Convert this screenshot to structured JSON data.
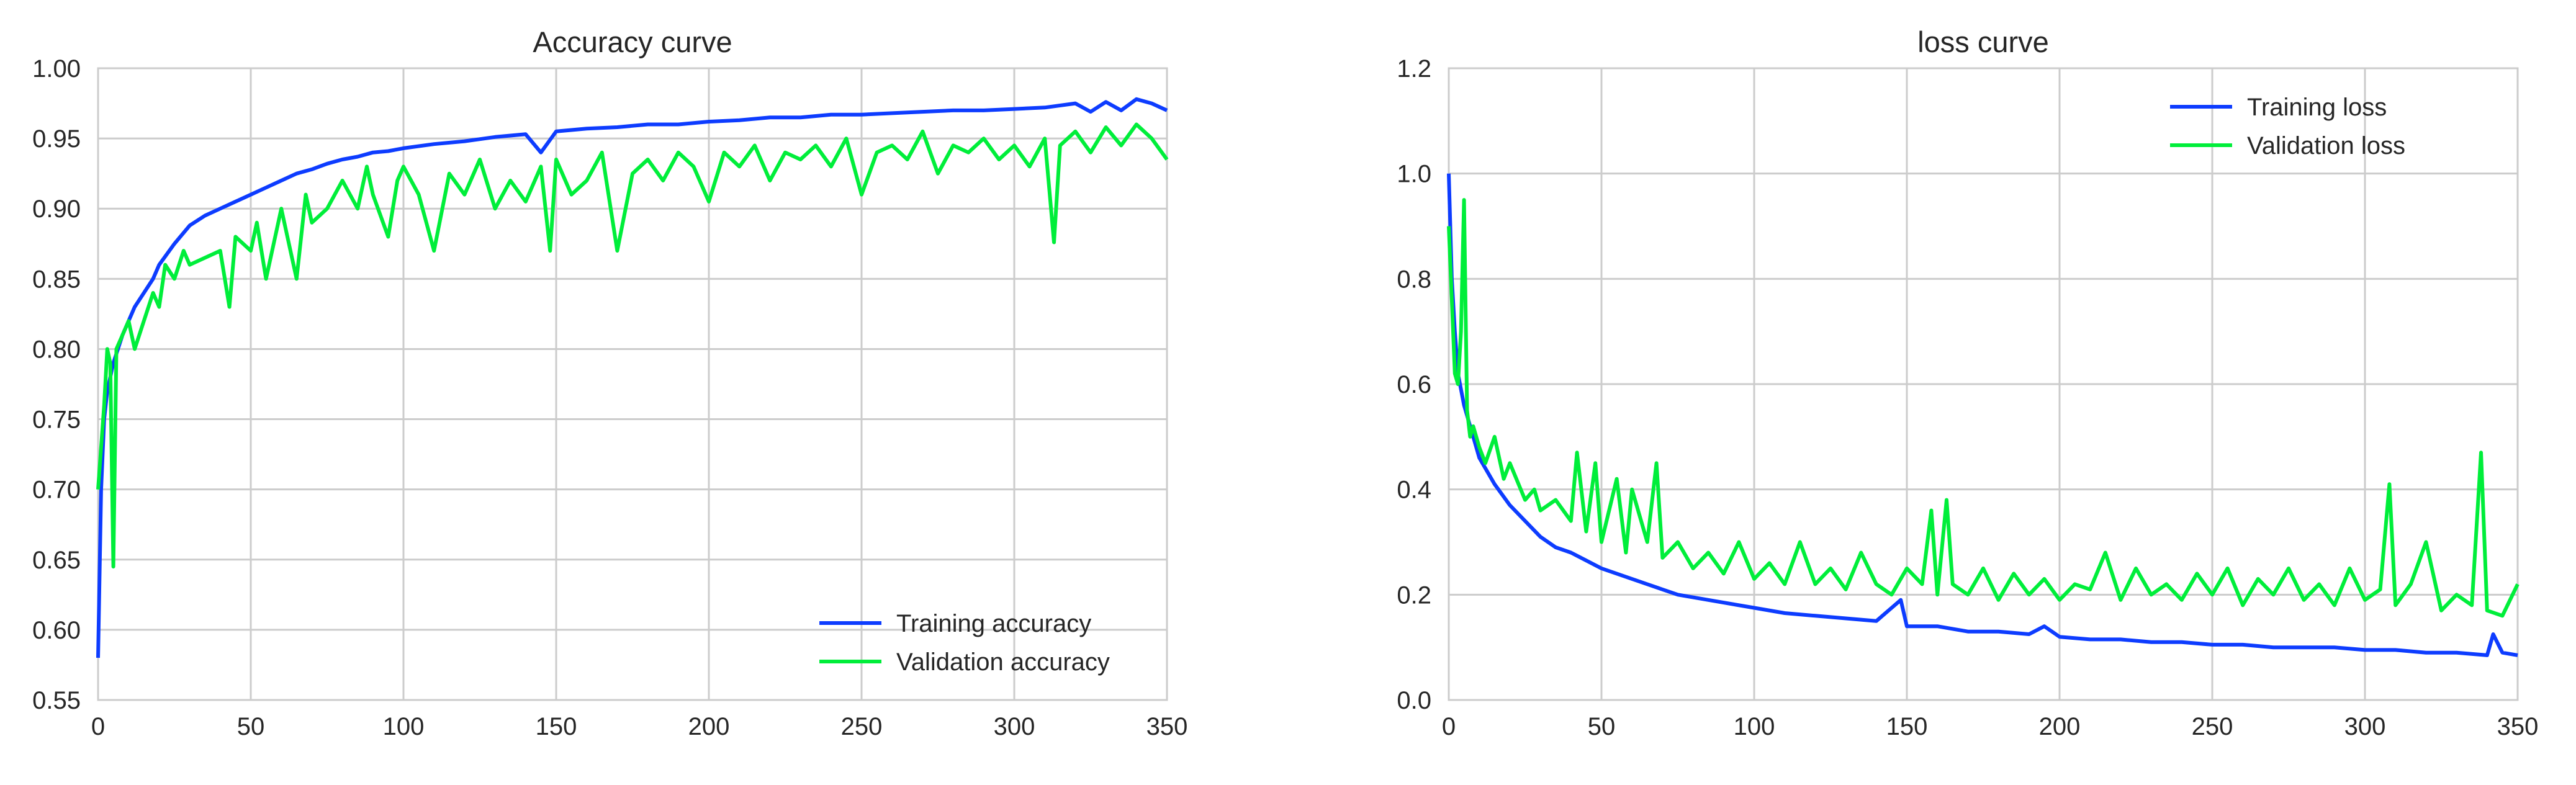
{
  "figure": {
    "colors": {
      "training": "#0d3cff",
      "validation": "#00ee3a",
      "grid": "#cccccc",
      "background": "#ffffff"
    }
  },
  "chart_data": [
    {
      "type": "line",
      "title": "Accuracy curve",
      "xlabel": "",
      "ylabel": "",
      "xlim": [
        0,
        350
      ],
      "ylim": [
        0.55,
        1.0
      ],
      "xticks": [
        0,
        50,
        100,
        150,
        200,
        250,
        300,
        350
      ],
      "xtick_labels": [
        "0",
        "50",
        "100",
        "150",
        "200",
        "250",
        "300",
        "350"
      ],
      "yticks": [
        0.55,
        0.6,
        0.65,
        0.7,
        0.75,
        0.8,
        0.85,
        0.9,
        0.95,
        1.0
      ],
      "ytick_labels": [
        "0.55",
        "0.60",
        "0.65",
        "0.70",
        "0.75",
        "0.80",
        "0.85",
        "0.90",
        "0.95",
        "1.00"
      ],
      "grid": true,
      "legend_position": "bottom-right",
      "series": [
        {
          "name": "Training accuracy",
          "color": "#0d3cff",
          "x": [
            0,
            1,
            2,
            3,
            5,
            8,
            10,
            12,
            15,
            18,
            20,
            25,
            30,
            35,
            40,
            45,
            50,
            55,
            60,
            65,
            70,
            75,
            80,
            85,
            90,
            95,
            100,
            110,
            120,
            130,
            140,
            145,
            150,
            160,
            170,
            180,
            190,
            200,
            210,
            220,
            230,
            240,
            250,
            260,
            270,
            280,
            290,
            300,
            310,
            320,
            325,
            330,
            335,
            340,
            345,
            350
          ],
          "y": [
            0.58,
            0.7,
            0.75,
            0.77,
            0.79,
            0.81,
            0.82,
            0.83,
            0.84,
            0.85,
            0.86,
            0.875,
            0.888,
            0.895,
            0.9,
            0.905,
            0.91,
            0.915,
            0.92,
            0.925,
            0.928,
            0.932,
            0.935,
            0.937,
            0.94,
            0.941,
            0.943,
            0.946,
            0.948,
            0.951,
            0.953,
            0.94,
            0.955,
            0.957,
            0.958,
            0.96,
            0.96,
            0.962,
            0.963,
            0.965,
            0.965,
            0.967,
            0.967,
            0.968,
            0.969,
            0.97,
            0.97,
            0.971,
            0.972,
            0.975,
            0.969,
            0.976,
            0.97,
            0.978,
            0.975,
            0.97
          ]
        },
        {
          "name": "Validation accuracy",
          "color": "#00ee3a",
          "x": [
            0,
            2,
            3,
            4,
            5,
            6,
            8,
            10,
            12,
            15,
            18,
            20,
            22,
            25,
            28,
            30,
            35,
            40,
            43,
            45,
            50,
            52,
            55,
            60,
            62,
            65,
            68,
            70,
            75,
            80,
            85,
            88,
            90,
            95,
            98,
            100,
            105,
            110,
            115,
            120,
            125,
            130,
            135,
            140,
            145,
            148,
            150,
            155,
            160,
            165,
            170,
            175,
            180,
            185,
            190,
            195,
            200,
            205,
            210,
            215,
            220,
            225,
            230,
            235,
            240,
            245,
            250,
            255,
            260,
            265,
            270,
            275,
            280,
            285,
            290,
            295,
            300,
            305,
            310,
            313,
            315,
            320,
            325,
            330,
            335,
            340,
            345,
            350
          ],
          "y": [
            0.7,
            0.76,
            0.8,
            0.79,
            0.645,
            0.8,
            0.81,
            0.82,
            0.8,
            0.82,
            0.84,
            0.83,
            0.86,
            0.85,
            0.87,
            0.86,
            0.865,
            0.87,
            0.83,
            0.88,
            0.87,
            0.89,
            0.85,
            0.9,
            0.88,
            0.85,
            0.91,
            0.89,
            0.9,
            0.92,
            0.9,
            0.93,
            0.91,
            0.88,
            0.92,
            0.93,
            0.91,
            0.87,
            0.925,
            0.91,
            0.935,
            0.9,
            0.92,
            0.905,
            0.93,
            0.87,
            0.935,
            0.91,
            0.92,
            0.94,
            0.87,
            0.925,
            0.935,
            0.92,
            0.94,
            0.93,
            0.905,
            0.94,
            0.93,
            0.945,
            0.92,
            0.94,
            0.935,
            0.945,
            0.93,
            0.95,
            0.91,
            0.94,
            0.945,
            0.935,
            0.955,
            0.925,
            0.945,
            0.94,
            0.95,
            0.935,
            0.945,
            0.93,
            0.95,
            0.876,
            0.945,
            0.955,
            0.94,
            0.958,
            0.945,
            0.96,
            0.95,
            0.935
          ]
        }
      ]
    },
    {
      "type": "line",
      "title": "loss curve",
      "xlabel": "",
      "ylabel": "",
      "xlim": [
        0,
        350
      ],
      "ylim": [
        0.0,
        1.2
      ],
      "xticks": [
        0,
        50,
        100,
        150,
        200,
        250,
        300,
        350
      ],
      "xtick_labels": [
        "0",
        "50",
        "100",
        "150",
        "200",
        "250",
        "300",
        "350"
      ],
      "yticks": [
        0.0,
        0.2,
        0.4,
        0.6,
        0.8,
        1.0,
        1.2
      ],
      "ytick_labels": [
        "0.0",
        "0.2",
        "0.4",
        "0.6",
        "0.8",
        "1.0",
        "1.2"
      ],
      "grid": true,
      "legend_position": "top-right",
      "series": [
        {
          "name": "Training loss",
          "color": "#0d3cff",
          "x": [
            0,
            1,
            2,
            3,
            5,
            8,
            10,
            15,
            20,
            25,
            30,
            35,
            40,
            45,
            50,
            55,
            60,
            65,
            70,
            75,
            80,
            90,
            100,
            110,
            120,
            130,
            140,
            148,
            150,
            160,
            170,
            180,
            190,
            195,
            200,
            210,
            220,
            230,
            240,
            250,
            260,
            270,
            280,
            290,
            300,
            310,
            320,
            330,
            340,
            342,
            345,
            350
          ],
          "y": [
            1.0,
            0.8,
            0.7,
            0.62,
            0.56,
            0.5,
            0.46,
            0.41,
            0.37,
            0.34,
            0.31,
            0.29,
            0.28,
            0.265,
            0.25,
            0.24,
            0.23,
            0.22,
            0.21,
            0.2,
            0.195,
            0.185,
            0.175,
            0.165,
            0.16,
            0.155,
            0.15,
            0.19,
            0.14,
            0.14,
            0.13,
            0.13,
            0.125,
            0.14,
            0.12,
            0.115,
            0.115,
            0.11,
            0.11,
            0.105,
            0.105,
            0.1,
            0.1,
            0.1,
            0.095,
            0.095,
            0.09,
            0.09,
            0.085,
            0.125,
            0.09,
            0.085
          ]
        },
        {
          "name": "Validation loss",
          "color": "#00ee3a",
          "x": [
            0,
            2,
            3,
            4,
            5,
            6,
            7,
            8,
            10,
            12,
            15,
            18,
            20,
            25,
            28,
            30,
            35,
            40,
            42,
            45,
            48,
            50,
            55,
            58,
            60,
            65,
            68,
            70,
            75,
            80,
            85,
            90,
            95,
            100,
            105,
            110,
            115,
            120,
            125,
            130,
            135,
            140,
            145,
            150,
            155,
            158,
            160,
            163,
            165,
            170,
            175,
            180,
            185,
            190,
            195,
            200,
            205,
            210,
            215,
            220,
            225,
            230,
            235,
            240,
            245,
            250,
            255,
            260,
            265,
            270,
            275,
            280,
            285,
            290,
            295,
            300,
            305,
            308,
            310,
            315,
            320,
            325,
            330,
            335,
            338,
            340,
            345,
            350
          ],
          "y": [
            0.9,
            0.62,
            0.6,
            0.7,
            0.95,
            0.55,
            0.5,
            0.52,
            0.48,
            0.45,
            0.5,
            0.42,
            0.45,
            0.38,
            0.4,
            0.36,
            0.38,
            0.34,
            0.47,
            0.32,
            0.45,
            0.3,
            0.42,
            0.28,
            0.4,
            0.3,
            0.45,
            0.27,
            0.3,
            0.25,
            0.28,
            0.24,
            0.3,
            0.23,
            0.26,
            0.22,
            0.3,
            0.22,
            0.25,
            0.21,
            0.28,
            0.22,
            0.2,
            0.25,
            0.22,
            0.36,
            0.2,
            0.38,
            0.22,
            0.2,
            0.25,
            0.19,
            0.24,
            0.2,
            0.23,
            0.19,
            0.22,
            0.21,
            0.28,
            0.19,
            0.25,
            0.2,
            0.22,
            0.19,
            0.24,
            0.2,
            0.25,
            0.18,
            0.23,
            0.2,
            0.25,
            0.19,
            0.22,
            0.18,
            0.25,
            0.19,
            0.21,
            0.41,
            0.18,
            0.22,
            0.3,
            0.17,
            0.2,
            0.18,
            0.47,
            0.17,
            0.16,
            0.22
          ]
        }
      ]
    }
  ]
}
